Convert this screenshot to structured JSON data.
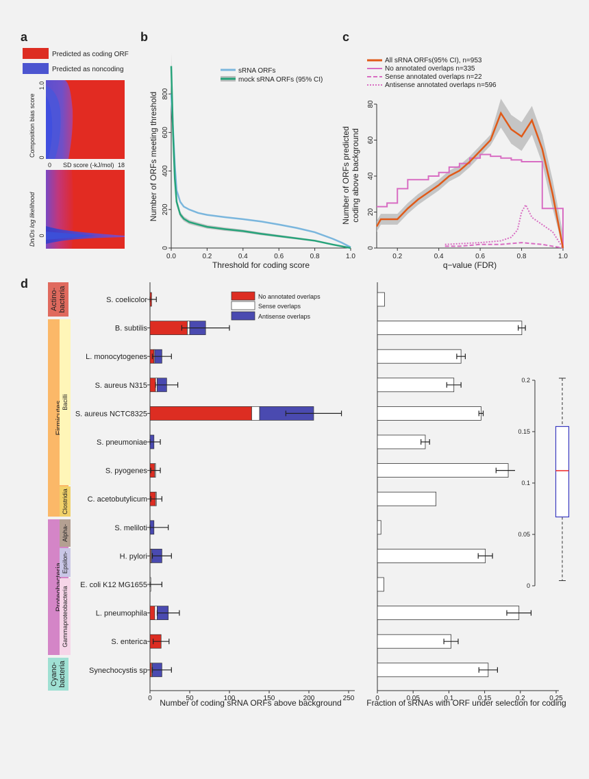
{
  "colors": {
    "red": "#dd2d22",
    "blue": "#4a4ab0",
    "white": "#ffffff",
    "sky": "#7ab6dd",
    "green": "#27a37a",
    "orange": "#e05a18",
    "pink": "#d86cc2",
    "ci": "#bdbdbd"
  },
  "panels": {
    "a": "a",
    "b": "b",
    "c": "c",
    "d": "d"
  },
  "panel_a": {
    "legend": [
      "Predicted as coding ORF",
      "Predicted as noncoding"
    ],
    "top_ylabel": "Composition bias score",
    "top_yticks": [
      "1.0",
      "0"
    ],
    "xlabel": "SD score (-kJ/mol)",
    "xticks": [
      "0",
      "18"
    ],
    "bottom_ylabel": "Dn/Ds log likelihood",
    "bottom_yticks": [
      "0"
    ]
  },
  "chart_data": [
    {
      "panel": "b",
      "type": "line",
      "xlabel": "Threshold for coding score",
      "ylabel": "Number of ORFs meeting threshold",
      "xlim": [
        0,
        1
      ],
      "ylim": [
        0,
        950
      ],
      "xticks": [
        "0.0",
        "0.2",
        "0.4",
        "0.6",
        "0.8",
        "1.0"
      ],
      "yticks": [
        "0",
        "200",
        "400",
        "600",
        "800"
      ],
      "legend": "top-right",
      "series": [
        {
          "name": "sRNA ORFs",
          "x": [
            0,
            0.01,
            0.02,
            0.03,
            0.05,
            0.07,
            0.1,
            0.15,
            0.2,
            0.3,
            0.4,
            0.5,
            0.6,
            0.7,
            0.8,
            0.9,
            0.95,
            1.0
          ],
          "values": [
            800,
            620,
            430,
            300,
            240,
            215,
            200,
            182,
            172,
            160,
            150,
            138,
            122,
            104,
            82,
            48,
            28,
            4
          ]
        },
        {
          "name": "mock sRNA ORFs (95% CI)",
          "x": [
            0,
            0.01,
            0.02,
            0.03,
            0.05,
            0.07,
            0.1,
            0.15,
            0.2,
            0.3,
            0.4,
            0.5,
            0.6,
            0.7,
            0.8,
            0.9,
            1.0
          ],
          "values": [
            945,
            600,
            360,
            240,
            175,
            152,
            135,
            122,
            110,
            98,
            88,
            74,
            62,
            50,
            38,
            18,
            0
          ]
        }
      ]
    },
    {
      "panel": "c",
      "type": "line",
      "xlabel": "q−value (FDR)",
      "ylabel": "Number of ORFs predicted coding above background",
      "xlim": [
        0.1,
        1
      ],
      "ylim": [
        0,
        80
      ],
      "xticks": [
        "0.2",
        "0.4",
        "0.6",
        "0.8",
        "1.0"
      ],
      "yticks": [
        "0",
        "20",
        "40",
        "60",
        "80"
      ],
      "legend": "top-left",
      "series": [
        {
          "name": "All sRNA ORFs(95% CI), n=953",
          "x": [
            0.1,
            0.12,
            0.2,
            0.25,
            0.3,
            0.35,
            0.4,
            0.45,
            0.5,
            0.55,
            0.6,
            0.65,
            0.7,
            0.75,
            0.8,
            0.85,
            0.9,
            0.95,
            1.0
          ],
          "values": [
            12,
            16,
            16,
            22,
            27,
            31,
            35,
            40,
            43,
            48,
            54,
            60,
            75,
            66,
            62,
            71,
            55,
            30,
            0
          ]
        },
        {
          "name": "No annotated overlaps n=335",
          "x": [
            0.1,
            0.15,
            0.2,
            0.25,
            0.3,
            0.35,
            0.4,
            0.45,
            0.5,
            0.55,
            0.6,
            0.65,
            0.7,
            0.75,
            0.8,
            0.9,
            1.0
          ],
          "values": [
            23,
            25,
            33,
            38,
            38,
            40,
            42,
            45,
            47,
            50,
            52,
            51,
            50,
            49,
            48,
            22,
            0
          ]
        },
        {
          "name": "Sense annotated overlaps n=22",
          "x": [
            0.43,
            0.5,
            0.6,
            0.7,
            0.8,
            0.9,
            1.0
          ],
          "values": [
            1,
            1,
            2,
            2,
            3,
            2,
            0
          ]
        },
        {
          "name": "Antisense annotated overlaps n=596",
          "x": [
            0.43,
            0.6,
            0.7,
            0.75,
            0.78,
            0.8,
            0.82,
            0.85,
            0.9,
            0.95,
            1.0
          ],
          "values": [
            2,
            3,
            4,
            6,
            10,
            20,
            24,
            17,
            13,
            9,
            0
          ]
        }
      ]
    },
    {
      "panel": "d-left",
      "type": "bar",
      "xlabel": "Number of coding sRNA ORFs above background",
      "xlim": [
        0,
        260
      ],
      "xticks": [
        "0",
        "50",
        "100",
        "150",
        "200",
        "250"
      ],
      "legend": "top-right",
      "categories": [
        "S. coelicolor",
        "B. subtilis",
        "L. monocytogenes",
        "S. aureus N315",
        "S. aureus NCTC8325",
        "S. pneumoniae",
        "S. pyogenes",
        "C. acetobutylicum",
        "S. meliloti",
        "H. pylori",
        "E. coli K12 MG1655",
        "L. pneumophila",
        "S. enterica",
        "Synechocystis sp"
      ],
      "series": [
        {
          "name": "No annotated overlaps",
          "values": [
            2,
            47,
            5,
            7,
            128,
            0,
            6,
            7,
            0,
            1,
            0,
            6,
            14,
            2
          ]
        },
        {
          "name": "Sense overlaps",
          "values": [
            0,
            3,
            1,
            2,
            10,
            0,
            1,
            1,
            0,
            1,
            1,
            3,
            0,
            1
          ]
        },
        {
          "name": "Antisense overlaps",
          "values": [
            0,
            20,
            9,
            12,
            68,
            5,
            0,
            0,
            5,
            13,
            0,
            14,
            0,
            12
          ]
        }
      ],
      "errors": [
        6,
        30,
        12,
        14,
        35,
        8,
        6,
        7,
        18,
        12,
        14,
        14,
        10,
        12
      ]
    },
    {
      "panel": "d-right",
      "type": "bar",
      "xlabel": "Fraction of sRNAs with ORF under selection for coding",
      "xlim": [
        0,
        0.25
      ],
      "xticks": [
        "0",
        "0.05",
        "0.1",
        "0.15",
        "0.2",
        "0.25"
      ],
      "categories": [
        "S. coelicolor",
        "B. subtilis",
        "L. monocytogenes",
        "S. aureus N315",
        "S. aureus NCTC8325",
        "S. pneumoniae",
        "S. pyogenes",
        "C. acetobutylicum",
        "S. meliloti",
        "H. pylori",
        "E. coli K12 MG1655",
        "L. pneumophila",
        "S. enterica",
        "Synechocystis sp"
      ],
      "values": [
        0.01,
        0.202,
        0.117,
        0.107,
        0.145,
        0.067,
        0.183,
        0.082,
        0.005,
        0.151,
        0.009,
        0.198,
        0.103,
        0.155
      ],
      "errors": [
        0,
        0.005,
        0.006,
        0.01,
        0.003,
        0.006,
        0.017,
        0,
        0,
        0.01,
        0,
        0.017,
        0.01,
        0.013
      ]
    },
    {
      "panel": "d-inset",
      "type": "box",
      "ylim": [
        0,
        0.21
      ],
      "yticks": [
        "0",
        "0.05",
        "0.1",
        "0.15",
        "0.2"
      ],
      "min": 0.005,
      "q1": 0.067,
      "median": 0.112,
      "q3": 0.155,
      "max": 0.202
    }
  ],
  "taxonomy": {
    "phyla": [
      {
        "label": "Actino-\nbacteria",
        "l1": "Actino-",
        "l2": "bacteria",
        "color": "#e06a5e"
      },
      {
        "label": "Firmicutes",
        "color": "#fbb868"
      },
      {
        "label": "Proteobacteria",
        "color": "#d485c7"
      },
      {
        "label": "Cyano-\nbacteria",
        "l1": "Cyano-",
        "l2": "bacteria",
        "color": "#9fe0d3"
      }
    ],
    "classes": [
      {
        "label": "Bacilli",
        "color": "#fff6b8"
      },
      {
        "label": "Clostridia",
        "color": "#f1d169"
      },
      {
        "label": "Alpha-",
        "color": "#b4a092"
      },
      {
        "label": "Epsilon-",
        "color": "#c9c6e6"
      },
      {
        "label": "Gammaproteobacteria",
        "color": "#f6d5e8"
      }
    ]
  }
}
